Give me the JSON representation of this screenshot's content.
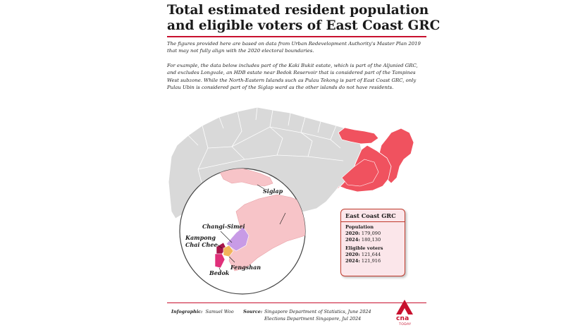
{
  "title": {
    "line1": "Total estimated resident population",
    "line2": "and eligible voters of East Coast GRC"
  },
  "intro": {
    "p1": "The figures provided here are based on data from Urban Redevelopment Authority's Master Plan 2019 that may not fully align with the 2020 electoral boundaries.",
    "p2": "For example, the data below includes part of the Kaki Bukit estate, which is part of the Aljunied GRC, and excludes Longvale, an HDB estate near Bedok Reservoir that is considered part of the Tampines West subzone. While the North-Eastern Islands such as Pulau Tekong is part of East Coast GRC, only Pulau Ubin is considered part of the Siglap ward as the other islands do not have residents."
  },
  "map": {
    "labels": {
      "siglap": "Siglap",
      "changi_simei": "Changi-Simei",
      "kampong_chai_chee_1": "Kampong",
      "kampong_chai_chee_2": "Chai Chee",
      "fengshan": "Fengshan",
      "bedok": "Bedok"
    },
    "colors": {
      "land": "#d9d9d9",
      "border": "#ffffff",
      "grc": "#f0525f",
      "siglap": "#f7c4c8",
      "changi_simei": "#c89be6",
      "kampong_chai_chee": "#a8154a",
      "fengshan": "#f2b45a",
      "bedok": "#e0307a"
    }
  },
  "infobox": {
    "heading": "East Coast GRC",
    "population": {
      "label": "Population",
      "y1_label": "2020:",
      "y1_value": "179,090",
      "y2_label": "2024:",
      "y2_value": "180,130"
    },
    "voters": {
      "label": "Eligible voters",
      "y1_label": "2020:",
      "y1_value": "121,644",
      "y2_label": "2024:",
      "y2_value": "121,916"
    }
  },
  "credits": {
    "infographic_label": "Infographic:",
    "infographic_value": "Samuel Woo",
    "source_label": "Source:",
    "source_line1": "Singapore Department of Statistics, June 2024",
    "source_line2": "Elections Department Singapore, Jul 2024"
  },
  "logo": {
    "text": "cna",
    "sub": "TODAY"
  }
}
